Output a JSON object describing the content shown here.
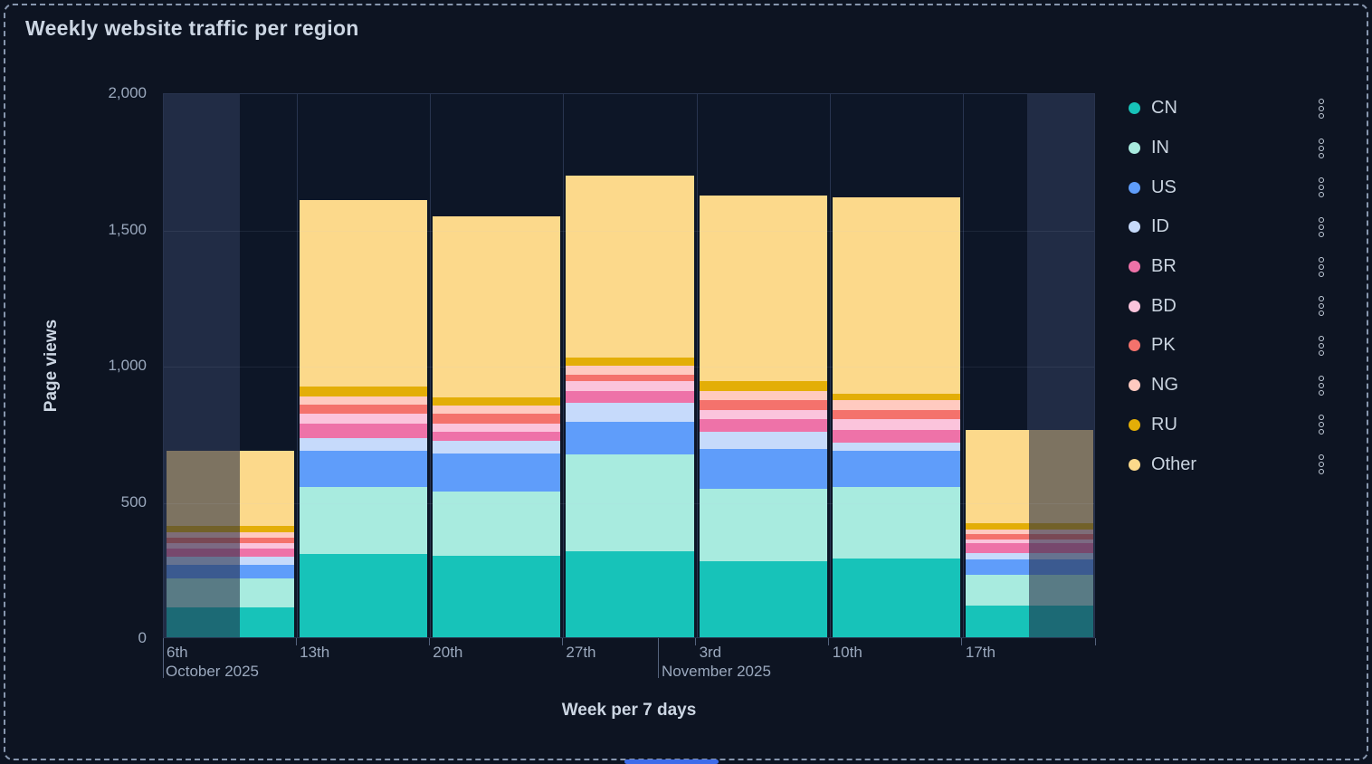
{
  "panel": {
    "title": "Weekly website traffic per region",
    "accent_bar_color": "#3e6cea"
  },
  "chart_data": {
    "type": "bar",
    "stacked": true,
    "title": "Weekly website traffic per region",
    "xlabel": "Week per 7 days",
    "ylabel": "Page views",
    "ylim": [
      0,
      2000
    ],
    "ytick_values": [
      0,
      500,
      1000,
      1500,
      2000
    ],
    "ytick_labels": [
      "0",
      "500",
      "1,000",
      "1,500",
      "2,000"
    ],
    "categories": [
      "6th",
      "13th",
      "20th",
      "27th",
      "3rd",
      "10th",
      "17th"
    ],
    "month_annotations": [
      {
        "label": "October 2025",
        "anchor_frac": 0.0
      },
      {
        "label": "November 2025",
        "anchor_frac": 0.532
      }
    ],
    "legend_position": "right",
    "legend_menu_icon": "kebab-menu-icon",
    "grid": true,
    "unselected_overlay": {
      "left_frac": 0.082,
      "right_frac": 0.072
    },
    "series": [
      {
        "name": "CN",
        "color": "#17c3b9",
        "values": [
          110,
          305,
          300,
          315,
          280,
          290,
          115
        ]
      },
      {
        "name": "IN",
        "color": "#a8ebdf",
        "values": [
          105,
          245,
          235,
          355,
          265,
          260,
          115
        ]
      },
      {
        "name": "US",
        "color": "#5f9dfa",
        "values": [
          50,
          135,
          140,
          120,
          145,
          135,
          55
        ]
      },
      {
        "name": "ID",
        "color": "#c6dafb",
        "values": [
          30,
          45,
          45,
          70,
          65,
          30,
          25
        ]
      },
      {
        "name": "BR",
        "color": "#ee72a8",
        "values": [
          30,
          55,
          35,
          45,
          45,
          45,
          35
        ]
      },
      {
        "name": "BD",
        "color": "#fbc4dc",
        "values": [
          20,
          35,
          30,
          35,
          35,
          40,
          15
        ]
      },
      {
        "name": "PK",
        "color": "#f4726c",
        "values": [
          20,
          35,
          35,
          25,
          35,
          35,
          20
        ]
      },
      {
        "name": "NG",
        "color": "#ffcac0",
        "values": [
          20,
          30,
          30,
          30,
          35,
          35,
          15
        ]
      },
      {
        "name": "RU",
        "color": "#e3ae07",
        "values": [
          25,
          35,
          30,
          30,
          35,
          25,
          25
        ]
      },
      {
        "name": "Other",
        "color": "#fcd98b",
        "values": [
          275,
          685,
          665,
          670,
          680,
          720,
          340
        ]
      }
    ],
    "totals": [
      685,
      1605,
      1545,
      1695,
      1620,
      1615,
      760
    ]
  }
}
